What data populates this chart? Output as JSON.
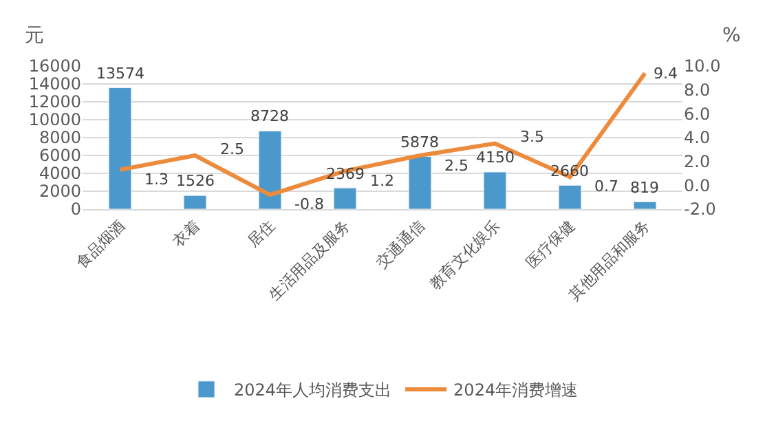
{
  "chart_data": {
    "type": "bar",
    "ylabel": "元",
    "y2label": "%",
    "categories": [
      "食品烟酒",
      "衣着",
      "居住",
      "生活用品及服务",
      "交通通信",
      "教育文化娱乐",
      "医疗保健",
      "其他用品和服务"
    ],
    "series": [
      {
        "name": "2024年人均消费支出",
        "type": "bar",
        "color": "#4a98cc",
        "values": [
          13574,
          1526,
          8728,
          2369,
          5878,
          4150,
          2660,
          819
        ]
      },
      {
        "name": "2024年消费增速",
        "type": "line",
        "axis": "y2",
        "color": "#ec8b3c",
        "values": [
          1.3,
          2.5,
          -0.8,
          1.2,
          2.5,
          3.5,
          0.7,
          9.4
        ]
      }
    ],
    "ylim": [
      0,
      16000
    ],
    "yticks": [
      0,
      2000,
      4000,
      6000,
      8000,
      10000,
      12000,
      14000,
      16000
    ],
    "y2lim": [
      -2,
      10
    ],
    "y2ticks": [
      {
        "value": -2,
        "label": "-2.0"
      },
      {
        "value": 0,
        "label": "0.0"
      },
      {
        "value": 2,
        "label": "2.0"
      },
      {
        "value": 4,
        "label": "4.0"
      },
      {
        "value": 6,
        "label": "6.0"
      },
      {
        "value": 8,
        "label": "8.0"
      },
      {
        "value": 10,
        "label": "10.0"
      }
    ],
    "grid": "y",
    "legend": "bottom",
    "data_labels": true,
    "marker": "none",
    "line_style": "solid"
  }
}
